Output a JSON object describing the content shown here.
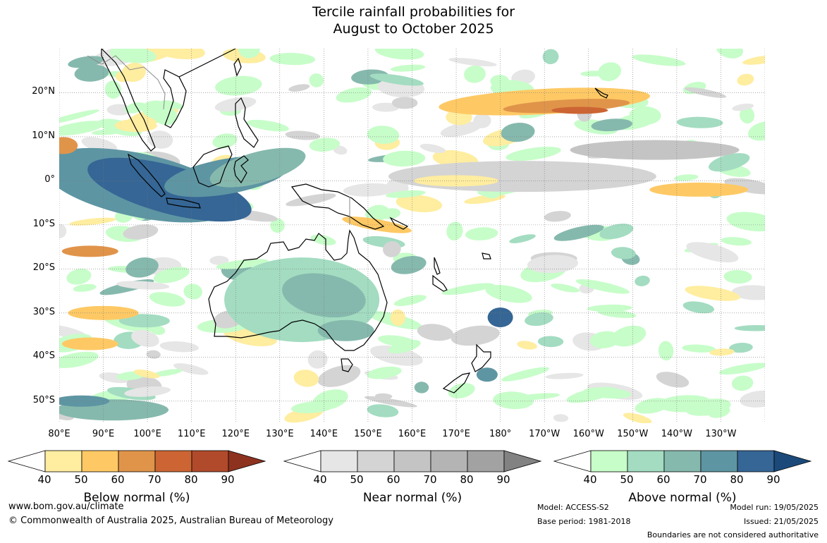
{
  "title": {
    "line1": "Tercile rainfall probabilities for",
    "line2": "August to October 2025"
  },
  "map": {
    "lat_labels": [
      "20°N",
      "10°N",
      "0°",
      "10°S",
      "20°S",
      "30°S",
      "40°S",
      "50°S"
    ],
    "lon_labels": [
      "80°E",
      "90°E",
      "100°E",
      "110°E",
      "120°E",
      "130°E",
      "140°E",
      "150°E",
      "160°E",
      "170°E",
      "180°",
      "170°W",
      "160°W",
      "150°W",
      "140°W",
      "130°W"
    ],
    "lon_range": [
      80,
      240
    ],
    "lat_range": [
      -55,
      30
    ],
    "colors": {
      "below": [
        "#ffeda0",
        "#fec965",
        "#e0944a",
        "#cc6533",
        "#b04a2b",
        "#8e3220"
      ],
      "near": [
        "#e6e6e6",
        "#d4d4d4",
        "#c4c4c4",
        "#b4b4b4",
        "#a2a2a2",
        "#828282"
      ],
      "above": [
        "#c7fdc9",
        "#a3dcc1",
        "#86b9ad",
        "#5e95a3",
        "#356695",
        "#1b4a7a"
      ]
    }
  },
  "legends": [
    {
      "name": "below",
      "label": "Below normal (%)",
      "ticks": [
        "40",
        "50",
        "60",
        "70",
        "80",
        "90"
      ]
    },
    {
      "name": "near",
      "label": "Near normal (%)",
      "ticks": [
        "40",
        "50",
        "60",
        "70",
        "80",
        "90"
      ]
    },
    {
      "name": "above",
      "label": "Above normal (%)",
      "ticks": [
        "40",
        "50",
        "60",
        "70",
        "80",
        "90"
      ]
    }
  ],
  "footer": {
    "website": "www.bom.gov.au/climate",
    "copyright": "© Commonwealth of Australia 2025, Australian Bureau of Meteorology",
    "model": "Model: ACCESS-S2",
    "base_period": "Base period: 1981-2018",
    "model_run": "Model run: 19/05/2025",
    "issued": "Issued: 21/05/2025",
    "disclaimer": "Boundaries are not considered authoritative"
  }
}
